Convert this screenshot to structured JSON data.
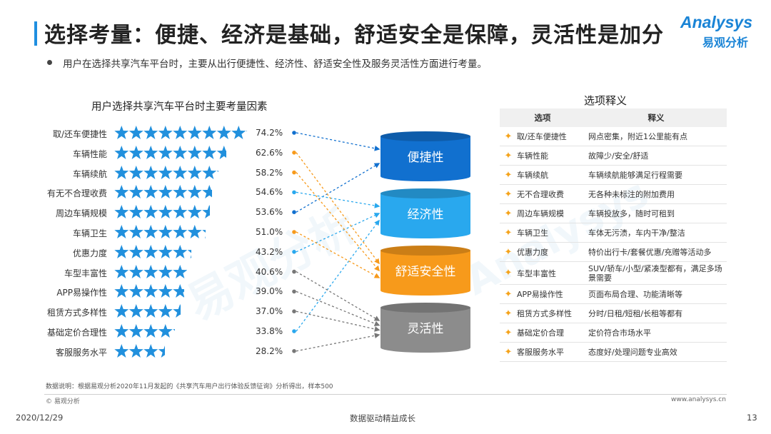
{
  "header": {
    "title": "选择考量：便捷、经济是基础，舒适安全是保障，灵活性是加分",
    "subtitle": "用户在选择共享汽车平台时，主要从出行便捷性、经济性、舒适安全性及服务灵活性方面进行考量。"
  },
  "logo": {
    "text_en": "Analysys",
    "text_cn": "易观分析"
  },
  "watermark": {
    "text": "易观分析",
    "text_en": "Analysys"
  },
  "chart_data": {
    "type": "bar",
    "title": "用户选择共享汽车平台时主要考量因素",
    "categories": [
      "取/还车便捷性",
      "车辆性能",
      "车辆续航",
      "有无不合理收费",
      "周边车辆规模",
      "车辆卫生",
      "优惠力度",
      "车型丰富性",
      "APP易操作性",
      "租赁方式多样性",
      "基础定价合理性",
      "客服服务水平"
    ],
    "values": [
      74.2,
      62.6,
      58.2,
      54.6,
      53.6,
      51.0,
      43.2,
      40.6,
      39.0,
      37.0,
      33.8,
      28.2
    ],
    "value_labels": [
      "74.2%",
      "62.6%",
      "58.2%",
      "54.6%",
      "53.6%",
      "51.0%",
      "43.2%",
      "40.6%",
      "39.0%",
      "37.0%",
      "33.8%",
      "28.2%"
    ],
    "unit": "%",
    "marker": "star",
    "star_color": "#2190dd",
    "groups": [
      {
        "name": "便捷性",
        "color": "#1170cf",
        "members": [
          "取/还车便捷性",
          "周边车辆规模"
        ]
      },
      {
        "name": "经济性",
        "color": "#29a8ee",
        "members": [
          "有无不合理收费",
          "优惠力度",
          "基础定价合理性"
        ]
      },
      {
        "name": "舒适安全性",
        "color": "#f79a1b",
        "members": [
          "车辆性能",
          "车辆续航",
          "车辆卫生"
        ]
      },
      {
        "name": "灵活性",
        "color": "#8c8c8c",
        "members": [
          "车型丰富性",
          "APP易操作性",
          "租赁方式多样性",
          "客服服务水平"
        ]
      }
    ]
  },
  "definitions": {
    "title": "选项释义",
    "col_option": "选项",
    "col_meaning": "释义",
    "rows": [
      {
        "option": "取/还车便捷性",
        "meaning": "网点密集，附近1公里能有点"
      },
      {
        "option": "车辆性能",
        "meaning": "故障少/安全/舒适"
      },
      {
        "option": "车辆续航",
        "meaning": "车辆续航能够满足行程需要"
      },
      {
        "option": "无不合理收费",
        "meaning": "无各种未标注的附加费用"
      },
      {
        "option": "周边车辆规模",
        "meaning": "车辆投放多，随时可租到"
      },
      {
        "option": "车辆卫生",
        "meaning": "车体无污渍，车内干净/整洁"
      },
      {
        "option": "优惠力度",
        "meaning": "特价出行卡/套餐优惠/充赠等活动多"
      },
      {
        "option": "车型丰富性",
        "meaning": "SUV/轿车/小型/紧凑型都有，满足多场景需要"
      },
      {
        "option": "APP易操作性",
        "meaning": "页面布局合理、功能清晰等"
      },
      {
        "option": "租赁方式多样性",
        "meaning": "分时/日租/短租/长租等都有"
      },
      {
        "option": "基础定价合理",
        "meaning": "定价符合市场水平"
      },
      {
        "option": "客服服务水平",
        "meaning": "态度好/处理问题专业高效"
      }
    ]
  },
  "footer": {
    "note": "数据说明：根据易观分析2020年11月发起的《共享汽车用户出行体验反馈征询》分析得出，样本500",
    "copyright": "© 易观分析",
    "website": "www.analysys.cn",
    "date": "2020/12/29",
    "slogan": "数据驱动精益成长",
    "page": "13"
  }
}
